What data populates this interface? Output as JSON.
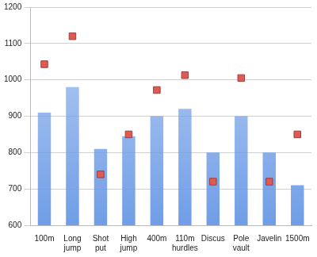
{
  "chart_data": {
    "type": "bar",
    "categories": [
      "100m",
      "Long jump",
      "Shot put",
      "High jump",
      "400m",
      "110m hurdles",
      "Discus",
      "Pole vault",
      "Javelin",
      "1500m"
    ],
    "series": [
      {
        "type": "bar",
        "color": "#6f9de6",
        "values": [
          910,
          980,
          810,
          845,
          900,
          920,
          800,
          900,
          800,
          710
        ]
      },
      {
        "type": "line",
        "color": "#e05a55",
        "marker": "square",
        "line_style": "none",
        "values": [
          1043,
          1120,
          740,
          850,
          972,
          1013,
          720,
          1005,
          720,
          850
        ]
      }
    ],
    "ylim": [
      600,
      1200
    ],
    "yticks": [
      600,
      700,
      800,
      900,
      1000,
      1100,
      1200
    ],
    "grid": true,
    "legend": false
  }
}
